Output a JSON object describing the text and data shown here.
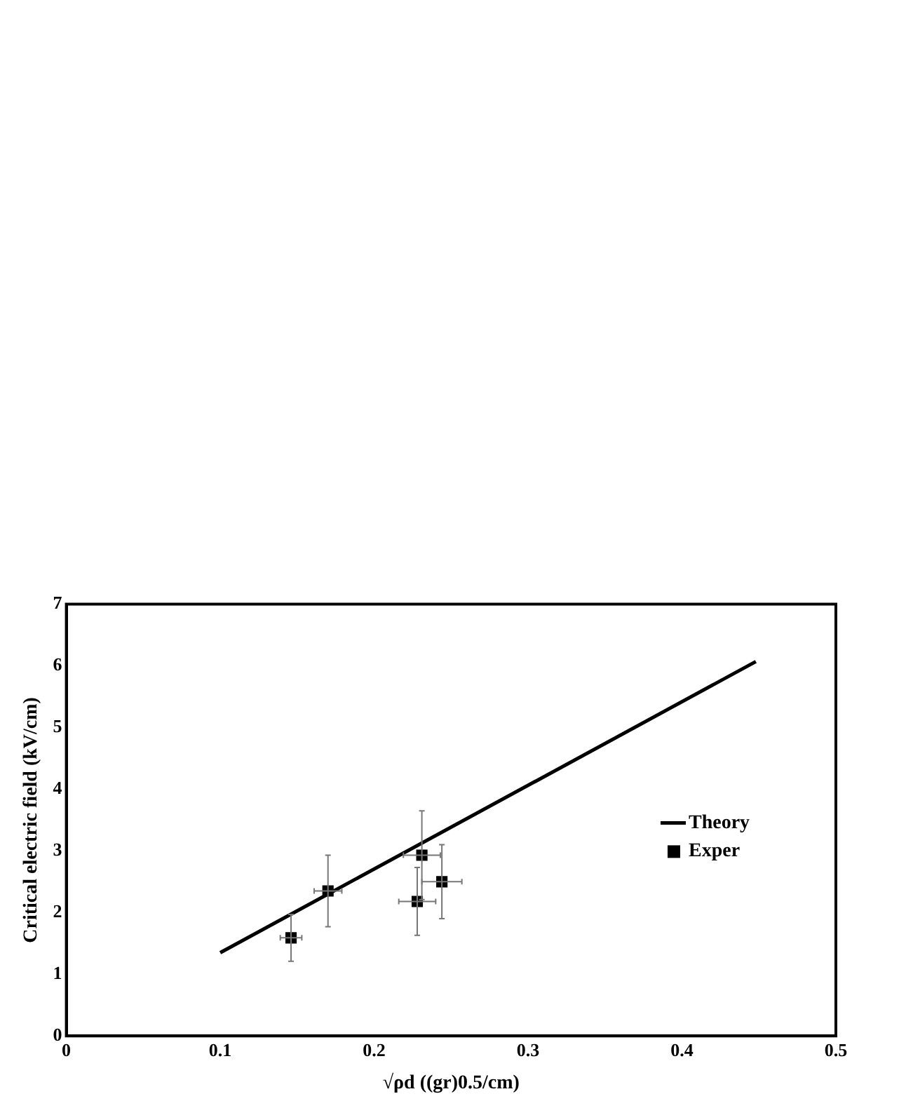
{
  "chart_data": {
    "type": "scatter",
    "xlabel": "√ρd ((gr)0.5/cm)",
    "ylabel": "Critical electric field (kV/cm)",
    "xlim": [
      0,
      0.5
    ],
    "xticks": [
      0,
      0.1,
      0.2,
      0.3,
      0.4,
      0.5
    ],
    "ylim": [
      0,
      7
    ],
    "yticks": [
      0,
      1,
      2,
      3,
      4,
      5,
      6,
      7
    ],
    "grid": false,
    "legend": "right",
    "series": [
      {
        "name": "Theory",
        "type": "line",
        "color": "#000000",
        "marker": "none",
        "x": [
          0.1,
          0.448
        ],
        "values": [
          1.35,
          6.07
        ]
      },
      {
        "name": "Exper",
        "type": "scatter",
        "color": "#000000",
        "marker": "square",
        "x": [
          0.146,
          0.17,
          0.231,
          0.228,
          0.244
        ],
        "values": [
          1.59,
          2.35,
          2.93,
          2.18,
          2.5
        ],
        "errors": [
          0.38,
          0.58,
          0.72,
          0.55,
          0.6
        ],
        "xerrors": [
          0.007,
          0.009,
          0.012,
          0.012,
          0.013
        ]
      }
    ]
  }
}
